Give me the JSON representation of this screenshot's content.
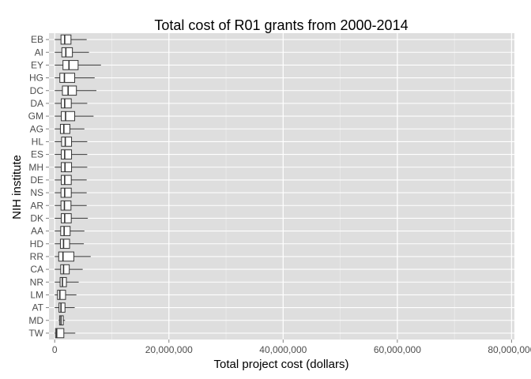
{
  "chart_data": {
    "type": "boxplot",
    "orientation": "horizontal",
    "title": "Total cost of R01 grants from 2000-2014",
    "xlabel": "Total project cost (dollars)",
    "ylabel": "NIH institute",
    "xlim": [
      -1000000,
      80500000
    ],
    "x_ticks": [
      0,
      20000000,
      40000000,
      60000000,
      80000000
    ],
    "x_tick_labels": [
      "0",
      "20,000,000",
      "40,000,000",
      "60,000,000",
      "80,000,000"
    ],
    "categories": [
      "EB",
      "AI",
      "EY",
      "HG",
      "DC",
      "DA",
      "GM",
      "AG",
      "HL",
      "ES",
      "MH",
      "DE",
      "NS",
      "AR",
      "DK",
      "AA",
      "HD",
      "RR",
      "CA",
      "NR",
      "LM",
      "AT",
      "MD",
      "TW"
    ],
    "boxes": [
      {
        "label": "EB",
        "min": 0,
        "q1": 1100000,
        "median": 1750000,
        "q3": 2850000,
        "max": 5600000
      },
      {
        "label": "AI",
        "min": 0,
        "q1": 1250000,
        "median": 1950000,
        "q3": 3100000,
        "max": 6000000
      },
      {
        "label": "EY",
        "min": 0,
        "q1": 1450000,
        "median": 2500000,
        "q3": 4100000,
        "max": 8100000
      },
      {
        "label": "HG",
        "min": 0,
        "q1": 900000,
        "median": 1700000,
        "q3": 3500000,
        "max": 7000000
      },
      {
        "label": "DC",
        "min": 0,
        "q1": 1350000,
        "median": 2350000,
        "q3": 3800000,
        "max": 7300000
      },
      {
        "label": "DA",
        "min": 0,
        "q1": 1150000,
        "median": 1750000,
        "q3": 2900000,
        "max": 5700000
      },
      {
        "label": "GM",
        "min": 0,
        "q1": 1150000,
        "median": 1900000,
        "q3": 3500000,
        "max": 6800000
      },
      {
        "label": "AG",
        "min": 0,
        "q1": 1000000,
        "median": 1600000,
        "q3": 2650000,
        "max": 5200000
      },
      {
        "label": "HL",
        "min": 0,
        "q1": 1200000,
        "median": 1850000,
        "q3": 2950000,
        "max": 5700000
      },
      {
        "label": "ES",
        "min": 0,
        "q1": 1150000,
        "median": 1750000,
        "q3": 2950000,
        "max": 5700000
      },
      {
        "label": "MH",
        "min": 0,
        "q1": 1150000,
        "median": 1800000,
        "q3": 2950000,
        "max": 5700000
      },
      {
        "label": "DE",
        "min": 0,
        "q1": 1150000,
        "median": 1750000,
        "q3": 2900000,
        "max": 5600000
      },
      {
        "label": "NS",
        "min": 0,
        "q1": 1100000,
        "median": 1750000,
        "q3": 2900000,
        "max": 5600000
      },
      {
        "label": "AR",
        "min": 0,
        "q1": 1100000,
        "median": 1700000,
        "q3": 2850000,
        "max": 5600000
      },
      {
        "label": "DK",
        "min": 0,
        "q1": 1150000,
        "median": 1750000,
        "q3": 2900000,
        "max": 5800000
      },
      {
        "label": "AA",
        "min": 0,
        "q1": 1050000,
        "median": 1650000,
        "q3": 2700000,
        "max": 5200000
      },
      {
        "label": "HD",
        "min": 0,
        "q1": 1000000,
        "median": 1550000,
        "q3": 2600000,
        "max": 5100000
      },
      {
        "label": "RR",
        "min": 0,
        "q1": 700000,
        "median": 1450000,
        "q3": 3350000,
        "max": 6300000
      },
      {
        "label": "CA",
        "min": 0,
        "q1": 1050000,
        "median": 1550000,
        "q3": 2550000,
        "max": 4900000
      },
      {
        "label": "NR",
        "min": 0,
        "q1": 950000,
        "median": 1350000,
        "q3": 2050000,
        "max": 4200000
      },
      {
        "label": "LM",
        "min": 0,
        "q1": 500000,
        "median": 900000,
        "q3": 1900000,
        "max": 3800000
      },
      {
        "label": "AT",
        "min": 0,
        "q1": 750000,
        "median": 1100000,
        "q3": 1800000,
        "max": 3500000
      },
      {
        "label": "MD",
        "min": 700000,
        "q1": 850000,
        "median": 1100000,
        "q3": 1500000,
        "max": 1800000
      },
      {
        "label": "TW",
        "min": 0,
        "q1": 150000,
        "median": 350000,
        "q3": 1600000,
        "max": 3600000
      }
    ],
    "grid": true,
    "colors": {
      "panel": "#dedede",
      "grid": "#ffffff",
      "box_fill": "#ffffff",
      "box_stroke": "#333333",
      "tick_text": "#4d4d4d"
    }
  }
}
